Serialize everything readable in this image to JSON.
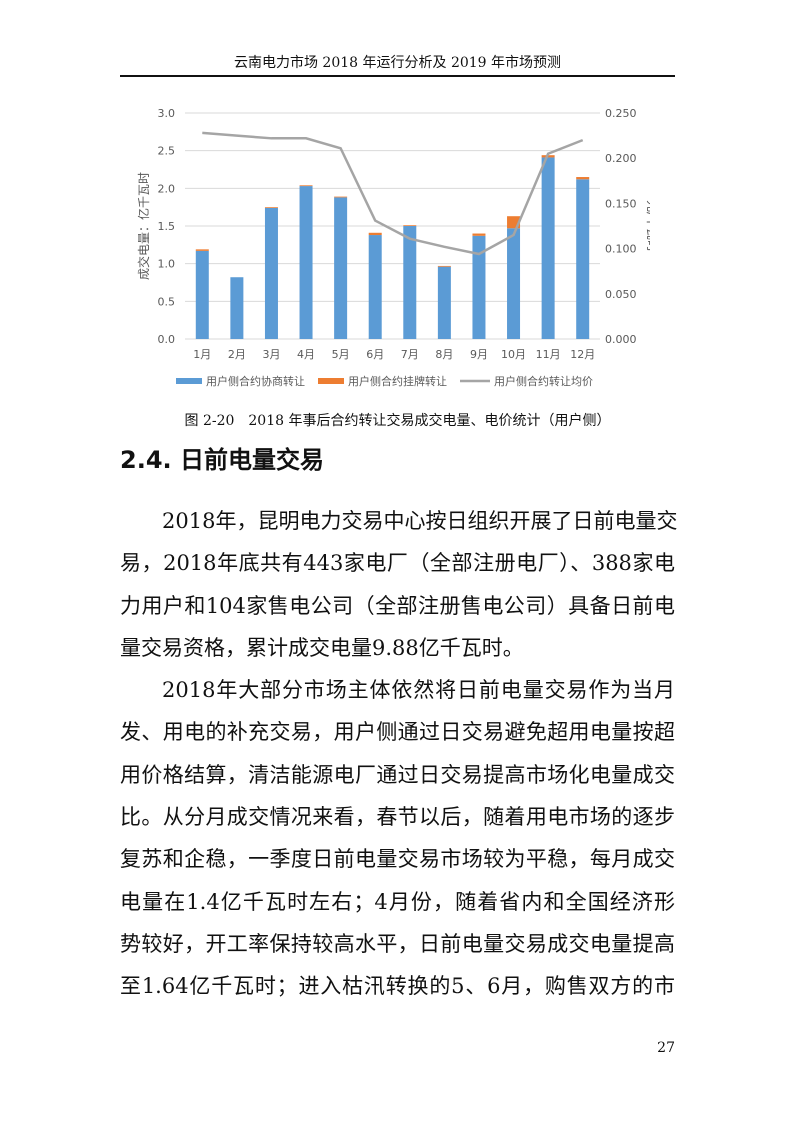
{
  "header": {
    "running_title": "云南电力市场 2018 年运行分析及 2019 年市场预测"
  },
  "chart_data": {
    "type": "bar",
    "stacked": true,
    "title": "",
    "categories": [
      "1月",
      "2月",
      "3月",
      "4月",
      "5月",
      "6月",
      "7月",
      "8月",
      "9月",
      "10月",
      "11月",
      "12月"
    ],
    "ylabel": "成交电量：亿千瓦时",
    "y2label": "元/千瓦时",
    "ylim": [
      0,
      3.0
    ],
    "y2lim": [
      0,
      0.25
    ],
    "yticks": [
      "0.0",
      "0.5",
      "1.0",
      "1.5",
      "2.0",
      "2.5",
      "3.0"
    ],
    "y2ticks": [
      "0.000",
      "0.050",
      "0.100",
      "0.150",
      "0.200",
      "0.250"
    ],
    "grid": true,
    "legend_position": "bottom",
    "series": [
      {
        "name": "用户侧合约协商转让",
        "type": "bar",
        "axis": "left",
        "color": "#5b9bd5",
        "values": [
          1.17,
          0.82,
          1.74,
          2.03,
          1.88,
          1.38,
          1.5,
          0.96,
          1.37,
          1.47,
          2.41,
          2.12
        ]
      },
      {
        "name": "用户侧合约挂牌转让",
        "type": "bar",
        "axis": "left",
        "color": "#ed7d31",
        "values": [
          0.02,
          0.0,
          0.01,
          0.01,
          0.01,
          0.03,
          0.01,
          0.01,
          0.03,
          0.16,
          0.03,
          0.03
        ]
      },
      {
        "name": "用户侧合约转让均价",
        "type": "line",
        "axis": "right",
        "color": "#a5a5a5",
        "values": [
          0.228,
          0.225,
          0.222,
          0.222,
          0.211,
          0.131,
          0.111,
          0.102,
          0.094,
          0.115,
          0.205,
          0.22
        ]
      }
    ]
  },
  "caption": "图 2-20　2018 年事后合约转让交易成交电量、电价统计（用户侧）",
  "section": {
    "heading": "2.4.  日前电量交易"
  },
  "paragraphs": [
    [
      "2018年，昆明电力交易中心按日组织开展了日前电量交",
      "易，2018年底共有443家电厂（全部注册电厂）、388家电",
      "力用户和104家售电公司（全部注册售电公司）具备日前电",
      "量交易资格，累计成交电量9.88亿千瓦时。"
    ],
    [
      "2018年大部分市场主体依然将日前电量交易作为当月",
      "发、用电的补充交易，用户侧通过日交易避免超用电量按超",
      "用价格结算，清洁能源电厂通过日交易提高市场化电量成交",
      "比。从分月成交情况来看，春节以后，随着用电市场的逐步",
      "复苏和企稳，一季度日前电量交易市场较为平稳，每月成交",
      "电量在1.4亿千瓦时左右；4月份，随着省内和全国经济形",
      "势较好，开工率保持较高水平，日前电量交易成交电量提高",
      "至1.64亿千瓦时；进入枯汛转换的5、6月，购售双方的市"
    ]
  ],
  "page_number": "27"
}
